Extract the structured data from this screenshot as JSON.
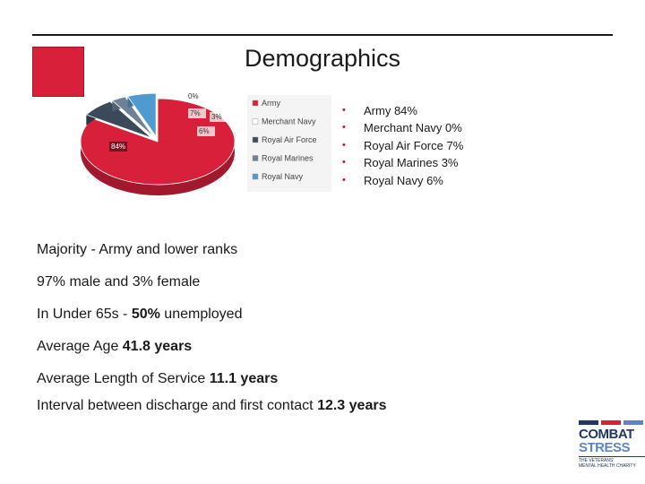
{
  "slide": {
    "title": "Demographics",
    "accent_color": "#d8203a"
  },
  "chart_data": {
    "type": "pie",
    "slices": [
      {
        "label": "Army",
        "value": 84,
        "data_label": "84%",
        "color": "#d8203a"
      },
      {
        "label": "Merchant Navy",
        "value": 0,
        "data_label": "0%",
        "color": "#ffffff"
      },
      {
        "label": "Royal Air Force",
        "value": 7,
        "data_label": "7%",
        "color": "#3b4a5a"
      },
      {
        "label": "Royal Marines",
        "value": 3,
        "data_label": "3%",
        "color": "#6e8196"
      },
      {
        "label": "Royal Navy",
        "value": 6,
        "data_label": "6%",
        "color": "#4f9bd0"
      }
    ],
    "legend": [
      "Army",
      "Merchant Navy",
      "Royal Air Force",
      "Royal Marines",
      "Royal Navy"
    ],
    "legend_position": "right",
    "style": "3d-exploded"
  },
  "bullets": [
    "Army 84%",
    "Merchant Navy 0%",
    "Royal Air Force 7%",
    "Royal Marines 3%",
    "Royal Navy 6%"
  ],
  "lines": {
    "majority": "Majority  - Army and lower ranks",
    "gender": "97% male and 3% female",
    "unemployed_prefix": "In Under 65s - ",
    "unemployed_value": "50%",
    "unemployed_suffix": " unemployed",
    "age_prefix": "Average Age ",
    "age_value": "41.8 years",
    "service_prefix": "Average Length of Service ",
    "service_value": "11.1 years",
    "interval_prefix": "Interval between discharge and first contact ",
    "interval_value": "12.3 years"
  },
  "logo": {
    "line1": "COMBAT",
    "line2": "STRESS",
    "line3": "THE VETERANS'",
    "line4": "MENTAL HEALTH CHARITY"
  }
}
